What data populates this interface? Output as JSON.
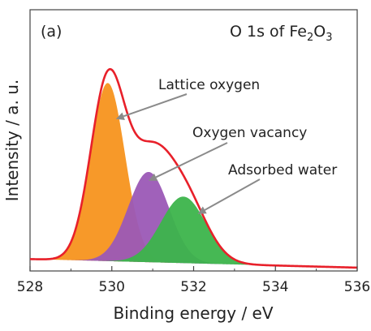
{
  "chart_data": {
    "type": "area",
    "panel_label": "(a)",
    "title_prefix": "O 1s of Fe",
    "title_sub1": "2",
    "title_mid": "O",
    "title_sub2": "3",
    "xlabel": "Binding energy / eV",
    "ylabel": "Intensity / a. u.",
    "xlim": [
      528,
      536
    ],
    "ylim": [
      0,
      1.1
    ],
    "x_ticks": [
      528,
      530,
      532,
      534,
      536
    ],
    "y_ticks_shown": false,
    "grid": false,
    "baseline": {
      "y0": 0.05,
      "slope": -0.0045
    },
    "components": [
      {
        "name": "Lattice oxygen",
        "center": 529.9,
        "amplitude": 0.75,
        "sigma": 0.42,
        "color": "#f7941d"
      },
      {
        "name": "Oxygen vacancy",
        "center": 530.9,
        "amplitude": 0.38,
        "sigma": 0.5,
        "color": "#9b59b6"
      },
      {
        "name": "Adsorbed water",
        "center": 531.75,
        "amplitude": 0.28,
        "sigma": 0.55,
        "color": "#3cb44b"
      }
    ],
    "envelope": {
      "color": "#e8202a"
    },
    "annotations": [
      {
        "text": "Lattice oxygen",
        "target_x": 530.1,
        "target_y": 0.64
      },
      {
        "text": "Oxygen vacancy",
        "target_x": 530.9,
        "target_y": 0.38
      },
      {
        "text": "Adsorbed water",
        "target_x": 532.1,
        "target_y": 0.24
      }
    ]
  }
}
